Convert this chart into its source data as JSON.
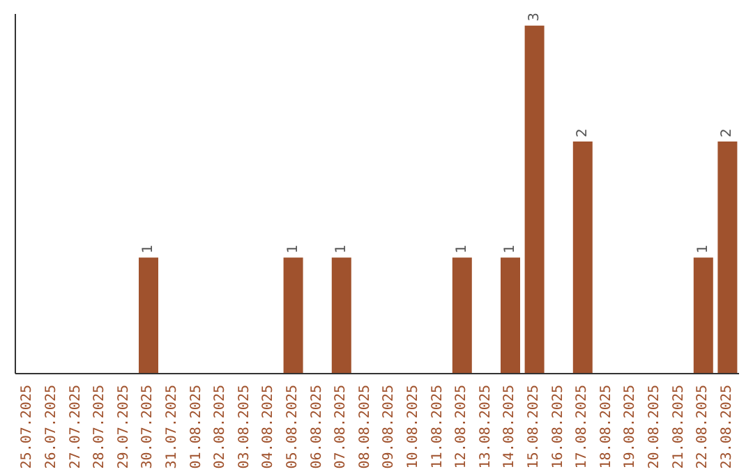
{
  "chart_data": {
    "type": "bar",
    "categories": [
      "25.07.2025",
      "26.07.2025",
      "27.07.2025",
      "28.07.2025",
      "29.07.2025",
      "30.07.2025",
      "31.07.2025",
      "01.08.2025",
      "02.08.2025",
      "03.08.2025",
      "04.08.2025",
      "05.08.2025",
      "06.08.2025",
      "07.08.2025",
      "08.08.2025",
      "09.08.2025",
      "10.08.2025",
      "11.08.2025",
      "12.08.2025",
      "13.08.2025",
      "14.08.2025",
      "15.08.2025",
      "16.08.2025",
      "17.08.2025",
      "18.08.2025",
      "19.08.2025",
      "20.08.2025",
      "21.08.2025",
      "22.08.2025",
      "23.08.2025"
    ],
    "values": [
      null,
      null,
      null,
      null,
      null,
      1,
      null,
      null,
      null,
      null,
      null,
      1,
      null,
      1,
      null,
      null,
      null,
      null,
      1,
      null,
      1,
      3,
      null,
      2,
      null,
      null,
      null,
      null,
      1,
      2
    ],
    "color": "#a0522d",
    "ylim": [
      0,
      3.1
    ],
    "tick_labels": "x",
    "data_labels": true,
    "grid": false
  }
}
